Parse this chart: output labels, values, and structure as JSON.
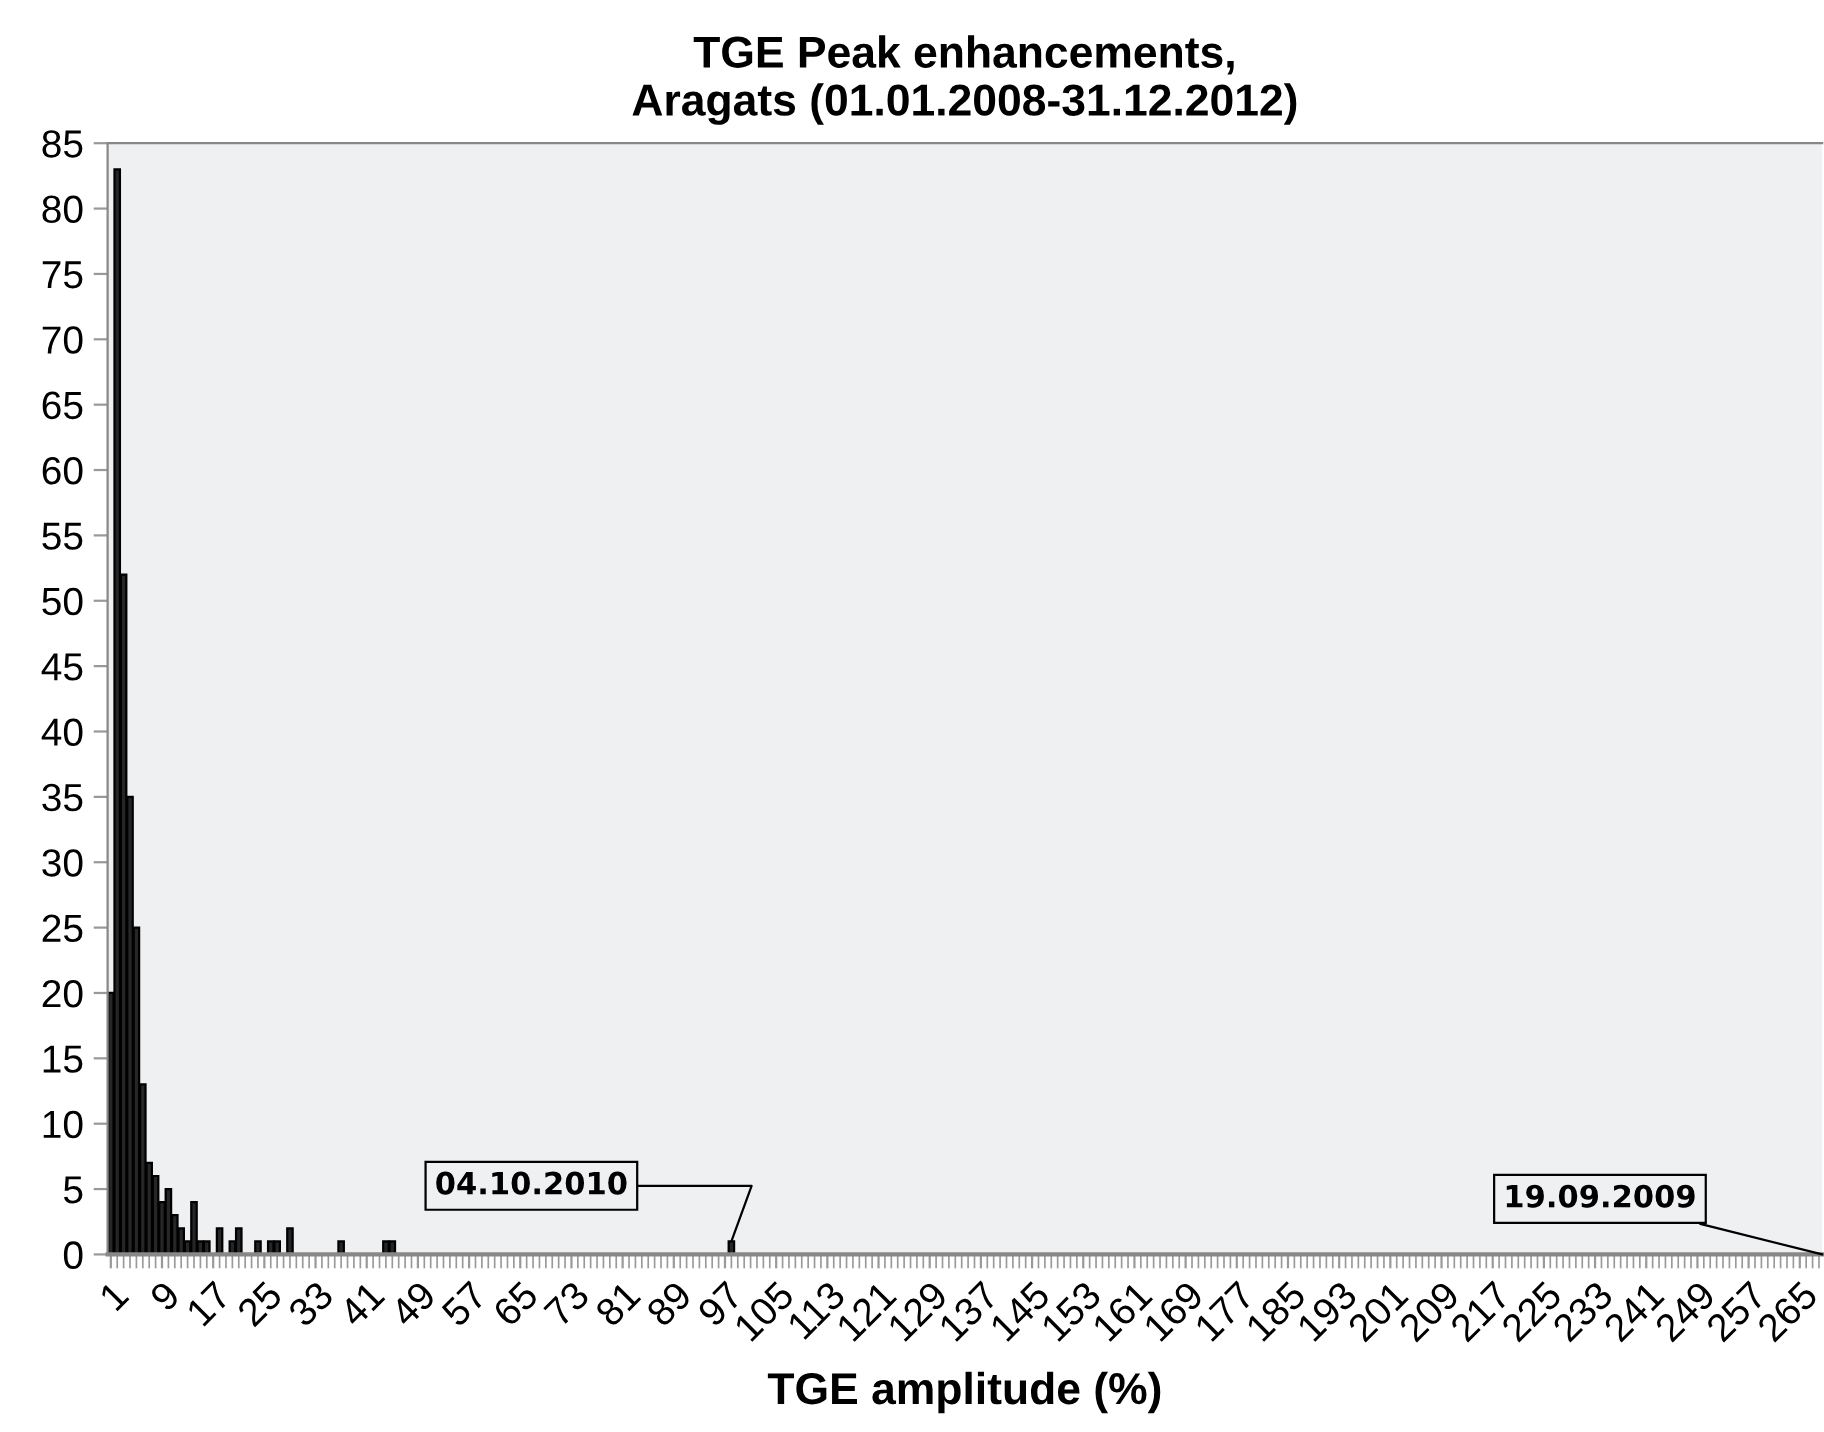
{
  "chart_data": {
    "type": "bar",
    "title": "TGE Peak enhancements,\nAragats (01.01.2008-31.12.2012)",
    "xlabel": "TGE amplitude (%)",
    "x": [
      1,
      2,
      3,
      4,
      5,
      6,
      7,
      8,
      9,
      10,
      11,
      12,
      13,
      14,
      15,
      16,
      18,
      20,
      21,
      24,
      26,
      27,
      29,
      37,
      44,
      45,
      98
    ],
    "values": [
      20,
      83,
      52,
      35,
      25,
      13,
      7,
      6,
      4,
      5,
      3,
      2,
      1,
      4,
      1,
      1,
      2,
      1,
      2,
      1,
      1,
      1,
      2,
      1,
      1,
      1,
      1
    ],
    "color": "#262626",
    "xlim": [
      0.5,
      268.5
    ],
    "xticks": [
      1,
      9,
      17,
      25,
      33,
      41,
      49,
      57,
      65,
      73,
      81,
      89,
      97,
      105,
      113,
      121,
      129,
      137,
      145,
      153,
      161,
      169,
      177,
      185,
      193,
      201,
      209,
      217,
      225,
      233,
      241,
      249,
      257,
      265
    ],
    "ylim": [
      0,
      85
    ],
    "yticks": [
      0,
      5,
      10,
      15,
      20,
      25,
      30,
      35,
      40,
      45,
      50,
      55,
      60,
      65,
      70,
      75,
      80,
      85
    ],
    "grid": false,
    "annotations": [
      {
        "text": "04.10.2010",
        "x": 98,
        "y": 1
      },
      "19.09.2009"
    ]
  }
}
